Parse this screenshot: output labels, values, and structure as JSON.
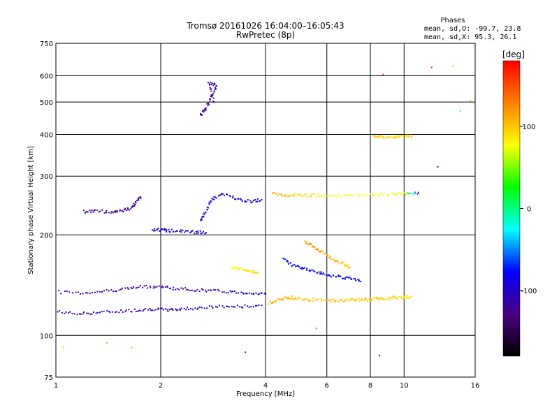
{
  "chart_data": {
    "type": "scatter",
    "title": "Tromsø 20161026 16:04:00–16:05:43",
    "subtitle": "RwPretec (8p)",
    "xlabel": "Frequency [MHz]",
    "ylabel": "Stationary phase Virtual Height [km]",
    "xscale": "log",
    "yscale": "log",
    "xlim": [
      1,
      16
    ],
    "ylim": [
      75,
      750
    ],
    "x_ticks": [
      1,
      2,
      4,
      6,
      8,
      10,
      16
    ],
    "x_tick_labels": [
      "1",
      "2",
      "4",
      "6",
      "8",
      "10",
      "16"
    ],
    "y_ticks": [
      75,
      100,
      200,
      300,
      400,
      500,
      600,
      750
    ],
    "y_tick_labels": [
      "75",
      "100",
      "200",
      "300",
      "400",
      "500",
      "600",
      "750"
    ],
    "grid": true,
    "stats": {
      "heading": "Phases",
      "line_o": "mean, sd,O: -99.7, 23.8",
      "line_x": "mean, sd,X:  95.3, 26.1"
    },
    "colorbar": {
      "label": "[deg]",
      "range": [
        -180,
        180
      ],
      "ticks": [
        100,
        0,
        -100
      ],
      "tick_labels": [
        "100",
        "0",
        "-100"
      ],
      "colors": [
        "#000000",
        "#4b0082",
        "#0000ff",
        "#00ffff",
        "#00ff00",
        "#ffff00",
        "#ff8000",
        "#ff0000"
      ]
    },
    "traces": [
      {
        "x": [
          1.0,
          1.15,
          1.3,
          1.5,
          1.7,
          1.9,
          2.1,
          2.3,
          2.6,
          3.0,
          3.4,
          3.9
        ],
        "y": [
          118,
          116,
          117,
          118,
          119,
          120,
          119,
          120,
          121,
          122,
          122,
          123
        ],
        "phase": [
          -110,
          -112,
          -115,
          -118,
          -115,
          -112,
          -110,
          -108,
          -105,
          -100,
          -100,
          -98
        ]
      },
      {
        "x": [
          1.0,
          1.2,
          1.4,
          1.6,
          1.8,
          2.0,
          2.2,
          2.5,
          2.8,
          3.2,
          3.6,
          4.0
        ],
        "y": [
          135,
          134,
          136,
          138,
          140,
          140,
          138,
          137,
          136,
          135,
          134,
          133
        ],
        "phase": [
          -112,
          -115,
          -118,
          -120,
          -118,
          -112,
          -110,
          -108,
          -106,
          -104,
          -102,
          -100
        ]
      },
      {
        "x": [
          1.2,
          1.3,
          1.45,
          1.55,
          1.65,
          1.7,
          1.75
        ],
        "y": [
          235,
          236,
          234,
          237,
          240,
          250,
          260
        ],
        "phase": [
          -125,
          -128,
          -125,
          -122,
          -120,
          -120,
          -118
        ]
      },
      {
        "x": [
          1.9,
          2.0,
          2.1,
          2.3,
          2.5,
          2.7
        ],
        "y": [
          208,
          207,
          206,
          205,
          204,
          203
        ],
        "phase": [
          -105,
          -103,
          -100,
          -98,
          -96,
          -95
        ]
      },
      {
        "x": [
          2.6,
          2.7,
          2.8,
          3.0,
          3.3,
          3.6,
          3.9
        ],
        "y": [
          220,
          235,
          255,
          265,
          258,
          252,
          255
        ],
        "phase": [
          -95,
          -92,
          -90,
          -88,
          -90,
          -92,
          -94
        ]
      },
      {
        "x": [
          3.2,
          3.4,
          3.6,
          3.8
        ],
        "y": [
          160,
          158,
          156,
          154
        ],
        "phase": [
          80,
          85,
          90,
          95
        ]
      },
      {
        "x": [
          4.1,
          4.4,
          4.7,
          5.0,
          5.4,
          6.0,
          6.5,
          7.0,
          7.5,
          8.0,
          8.5,
          9.0,
          9.5,
          10.0,
          10.5
        ],
        "y": [
          125,
          128,
          130,
          129,
          128,
          127,
          127,
          128,
          128,
          128,
          129,
          129,
          130,
          130,
          131
        ],
        "phase": [
          115,
          110,
          105,
          100,
          100,
          100,
          100,
          98,
          98,
          95,
          95,
          92,
          92,
          90,
          90
        ]
      },
      {
        "x": [
          5.2,
          5.5,
          5.8,
          6.2,
          6.6,
          7.0
        ],
        "y": [
          190,
          185,
          178,
          170,
          165,
          160
        ],
        "phase": [
          120,
          118,
          115,
          110,
          105,
          100
        ]
      },
      {
        "x": [
          4.2,
          4.6,
          5.0,
          5.5,
          6.0,
          7.0,
          8.0,
          9.0,
          10.0,
          11.0
        ],
        "y": [
          265,
          262,
          262,
          263,
          262,
          262,
          263,
          264,
          266,
          268
        ],
        "phase": [
          110,
          105,
          95,
          90,
          85,
          80,
          80,
          75,
          70,
          -80
        ]
      },
      {
        "x": [
          8.2,
          8.5,
          9.0,
          9.5,
          10.0,
          10.5
        ],
        "y": [
          392,
          393,
          391,
          392,
          394,
          395
        ],
        "phase": [
          95,
          95,
          90,
          90,
          92,
          95
        ]
      },
      {
        "x": [
          4.5,
          4.8,
          5.2,
          5.6,
          6.0,
          6.5,
          7.0,
          7.5
        ],
        "y": [
          170,
          162,
          158,
          155,
          152,
          150,
          148,
          145
        ],
        "phase": [
          -70,
          -75,
          -80,
          -80,
          -80,
          -78,
          -76,
          -74
        ]
      },
      {
        "x": [
          2.6,
          2.7,
          2.8,
          2.9,
          2.75,
          2.85
        ],
        "y": [
          455,
          480,
          520,
          560,
          570,
          500
        ],
        "phase": [
          -120,
          -115,
          -110,
          -115,
          -118,
          -112
        ]
      }
    ],
    "points": [
      {
        "x": 1.05,
        "y": 92,
        "phase": 60
      },
      {
        "x": 1.4,
        "y": 95,
        "phase": 120
      },
      {
        "x": 1.65,
        "y": 92,
        "phase": 110
      },
      {
        "x": 3.5,
        "y": 89,
        "phase": -120
      },
      {
        "x": 5.6,
        "y": 105,
        "phase": 140
      },
      {
        "x": 8.5,
        "y": 87,
        "phase": -100
      },
      {
        "x": 12,
        "y": 635,
        "phase": 175
      },
      {
        "x": 13.8,
        "y": 640,
        "phase": 60
      },
      {
        "x": 14.5,
        "y": 470,
        "phase": 0
      },
      {
        "x": 12.5,
        "y": 320,
        "phase": -130
      },
      {
        "x": 15.5,
        "y": 505,
        "phase": 110
      },
      {
        "x": 8.7,
        "y": 605,
        "phase": 150
      }
    ]
  }
}
